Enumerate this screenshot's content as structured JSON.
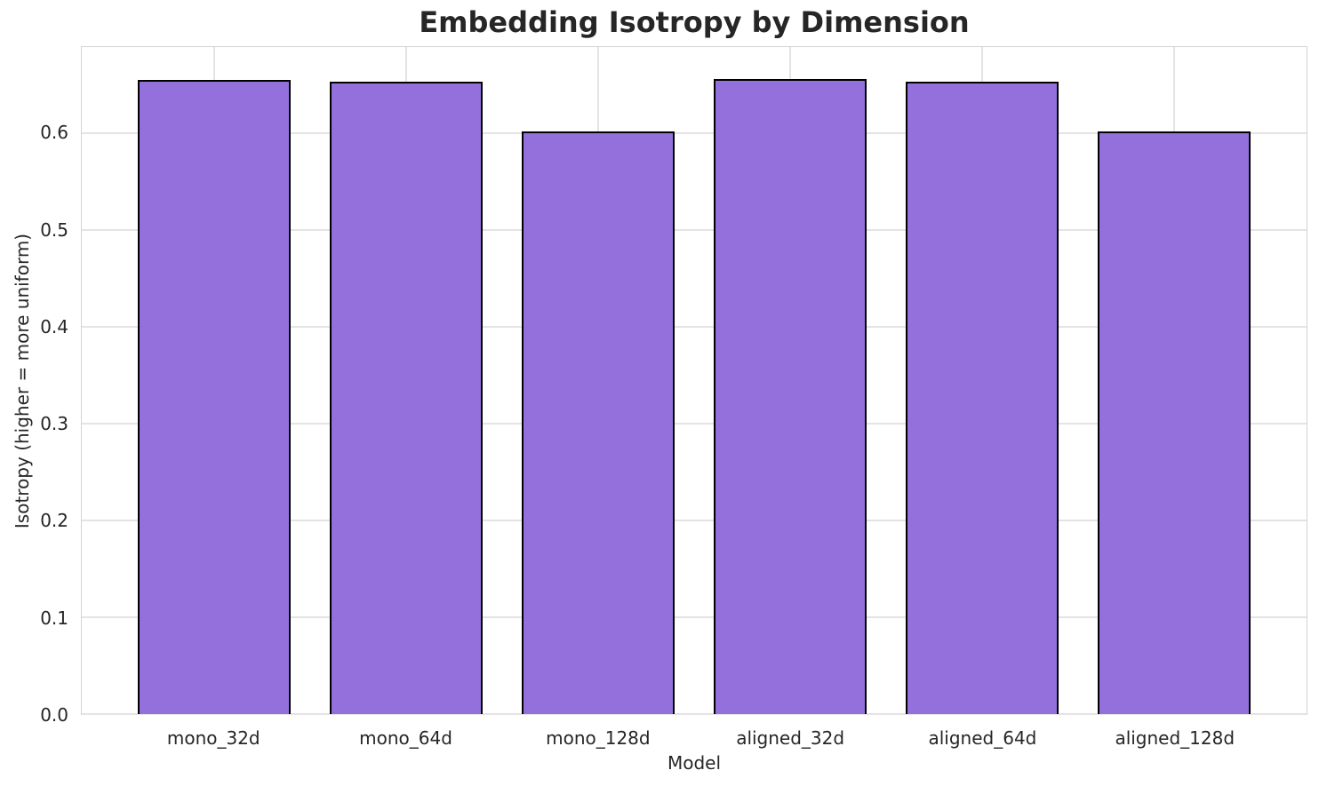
{
  "chart_data": {
    "type": "bar",
    "title": "Embedding Isotropy by Dimension",
    "xlabel": "Model",
    "ylabel": "Isotropy (higher = more uniform)",
    "categories": [
      "mono_32d",
      "mono_64d",
      "mono_128d",
      "aligned_32d",
      "aligned_64d",
      "aligned_128d"
    ],
    "values": [
      0.655,
      0.653,
      0.602,
      0.656,
      0.653,
      0.602
    ],
    "ylim": [
      0,
      0.689
    ],
    "yticks": [
      0,
      0.1,
      0.2,
      0.3,
      0.4,
      0.5,
      0.6
    ],
    "ytick_labels": [
      "0.0",
      "0.1",
      "0.2",
      "0.3",
      "0.4",
      "0.5",
      "0.6"
    ],
    "grid": true,
    "legend": "none",
    "colors": {
      "bar_fill": "#9370DB",
      "bar_edge": "#000000",
      "grid_line": "#e4e4e4",
      "spine": "#d4d4d4",
      "text": "#262626",
      "background": "#ffffff"
    }
  }
}
